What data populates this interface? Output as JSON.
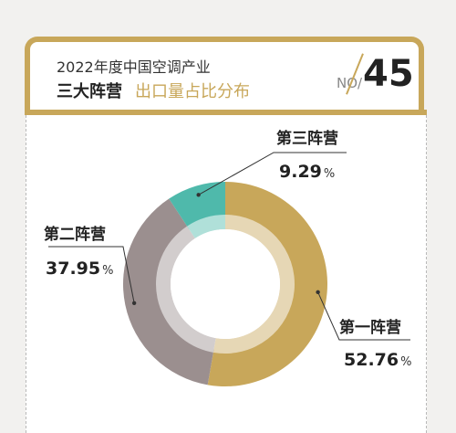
{
  "header": {
    "subtitle": "2022年度中国空调产业",
    "title_main": "三大阵营",
    "title_accent": "出口量占比分布",
    "no_label": "NO/",
    "no_value": "45"
  },
  "colors": {
    "gold": "#c8a75a",
    "gray": "#9b8f8f",
    "teal": "#4fb9ab"
  },
  "chart_data": {
    "type": "pie",
    "variant": "donut",
    "title": "",
    "series": [
      {
        "name": "第一阵营",
        "value": 52.76,
        "label": "52.76",
        "unit": "%",
        "color": "#c8a75a"
      },
      {
        "name": "第二阵营",
        "value": 37.95,
        "label": "37.95",
        "unit": "%",
        "color": "#9b8f8f"
      },
      {
        "name": "第三阵营",
        "value": 9.29,
        "label": "9.29",
        "unit": "%",
        "color": "#4fb9ab"
      }
    ]
  }
}
